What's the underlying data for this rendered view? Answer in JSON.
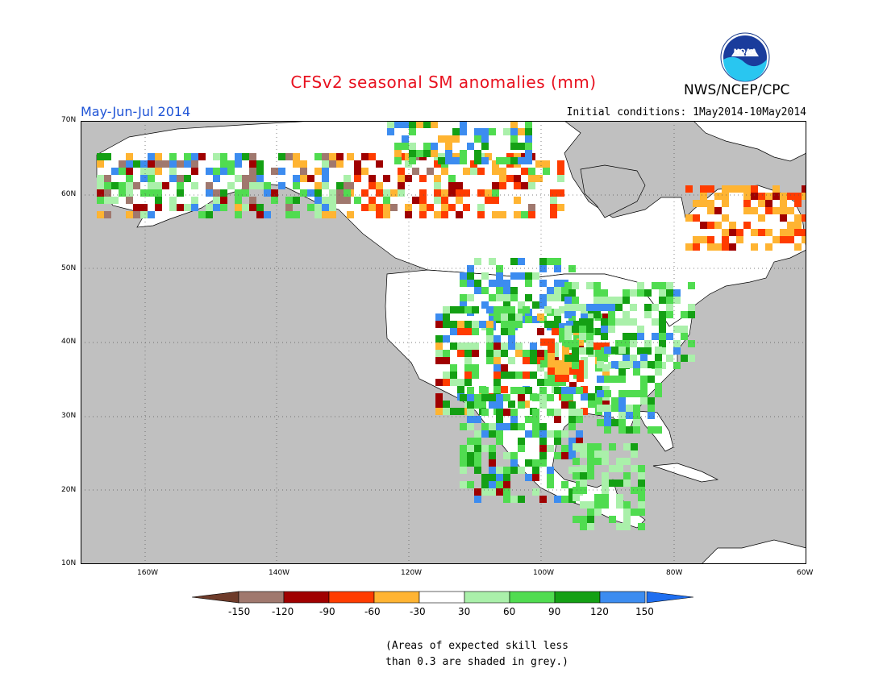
{
  "title": "CFSv2 seasonal SM anomalies (mm)",
  "organization": "NWS/NCEP/CPC",
  "logo_text": "NOAA",
  "period": "May-Jun-Jul 2014",
  "initial_conditions": "Initial conditions: 1May2014-10May2014",
  "map": {
    "lon_range": [
      -172,
      -60
    ],
    "lat_range": [
      10,
      70
    ],
    "background_color": "#c0c0c0",
    "land_unshaded_color": "#ffffff",
    "lat_ticks": [
      "70N",
      "60N",
      "50N",
      "40N",
      "30N",
      "20N",
      "10N"
    ],
    "lon_ticks": [
      "160W",
      "140W",
      "120W",
      "100W",
      "80W",
      "60W"
    ],
    "grid": "dotted"
  },
  "legend": {
    "bins": [
      {
        "label": "-150",
        "color": "#6e3b2a"
      },
      {
        "label": "-120",
        "color": "#a0786e"
      },
      {
        "label": "-90",
        "color": "#a00000"
      },
      {
        "label": "-60",
        "color": "#ff3c00"
      },
      {
        "label": "-30",
        "color": "#ffb432"
      },
      {
        "label": "30",
        "color": "#ffffff"
      },
      {
        "label": "60",
        "color": "#aaf0aa"
      },
      {
        "label": "90",
        "color": "#50dc50"
      },
      {
        "label": "120",
        "color": "#14a014"
      },
      {
        "label": "150",
        "color": "#3c8cf0"
      },
      {
        "label": "",
        "color": "#1e6ef0"
      }
    ],
    "labels": [
      "-150",
      "-120",
      "-90",
      "-60",
      "-30",
      "30",
      "60",
      "90",
      "120",
      "150"
    ]
  },
  "note_line1": "(Areas of expected skill less",
  "note_line2": "than 0.3 are shaded in grey.)"
}
